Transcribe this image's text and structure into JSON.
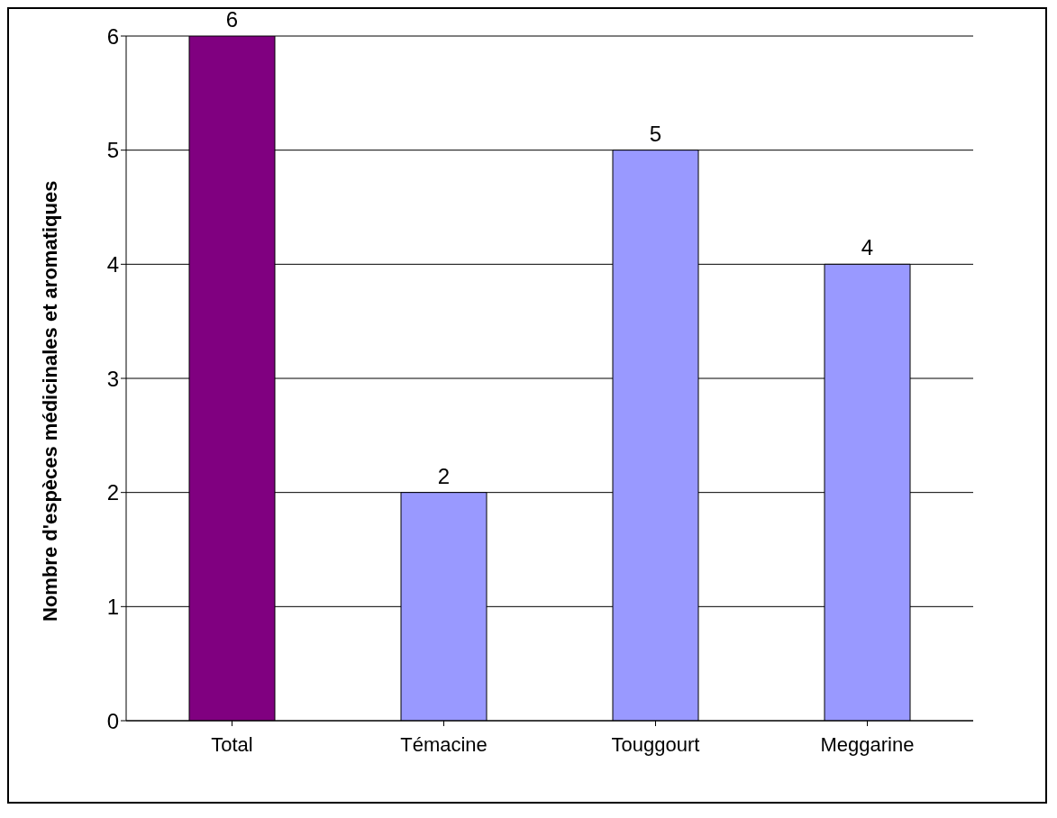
{
  "chart_data": {
    "type": "bar",
    "ylabel": "Nombre d'espèces médicinales et aromatiques",
    "categories": [
      "Total",
      "Témacine",
      "Touggourt",
      "Meggarine"
    ],
    "values": [
      6,
      2,
      5,
      4
    ],
    "colors": [
      "#800080",
      "#9999ff",
      "#9999ff",
      "#9999ff"
    ],
    "ylim": [
      0,
      6
    ],
    "yticks": [
      0,
      1,
      2,
      3,
      4,
      5,
      6
    ],
    "grid": "y",
    "data_labels": true
  }
}
